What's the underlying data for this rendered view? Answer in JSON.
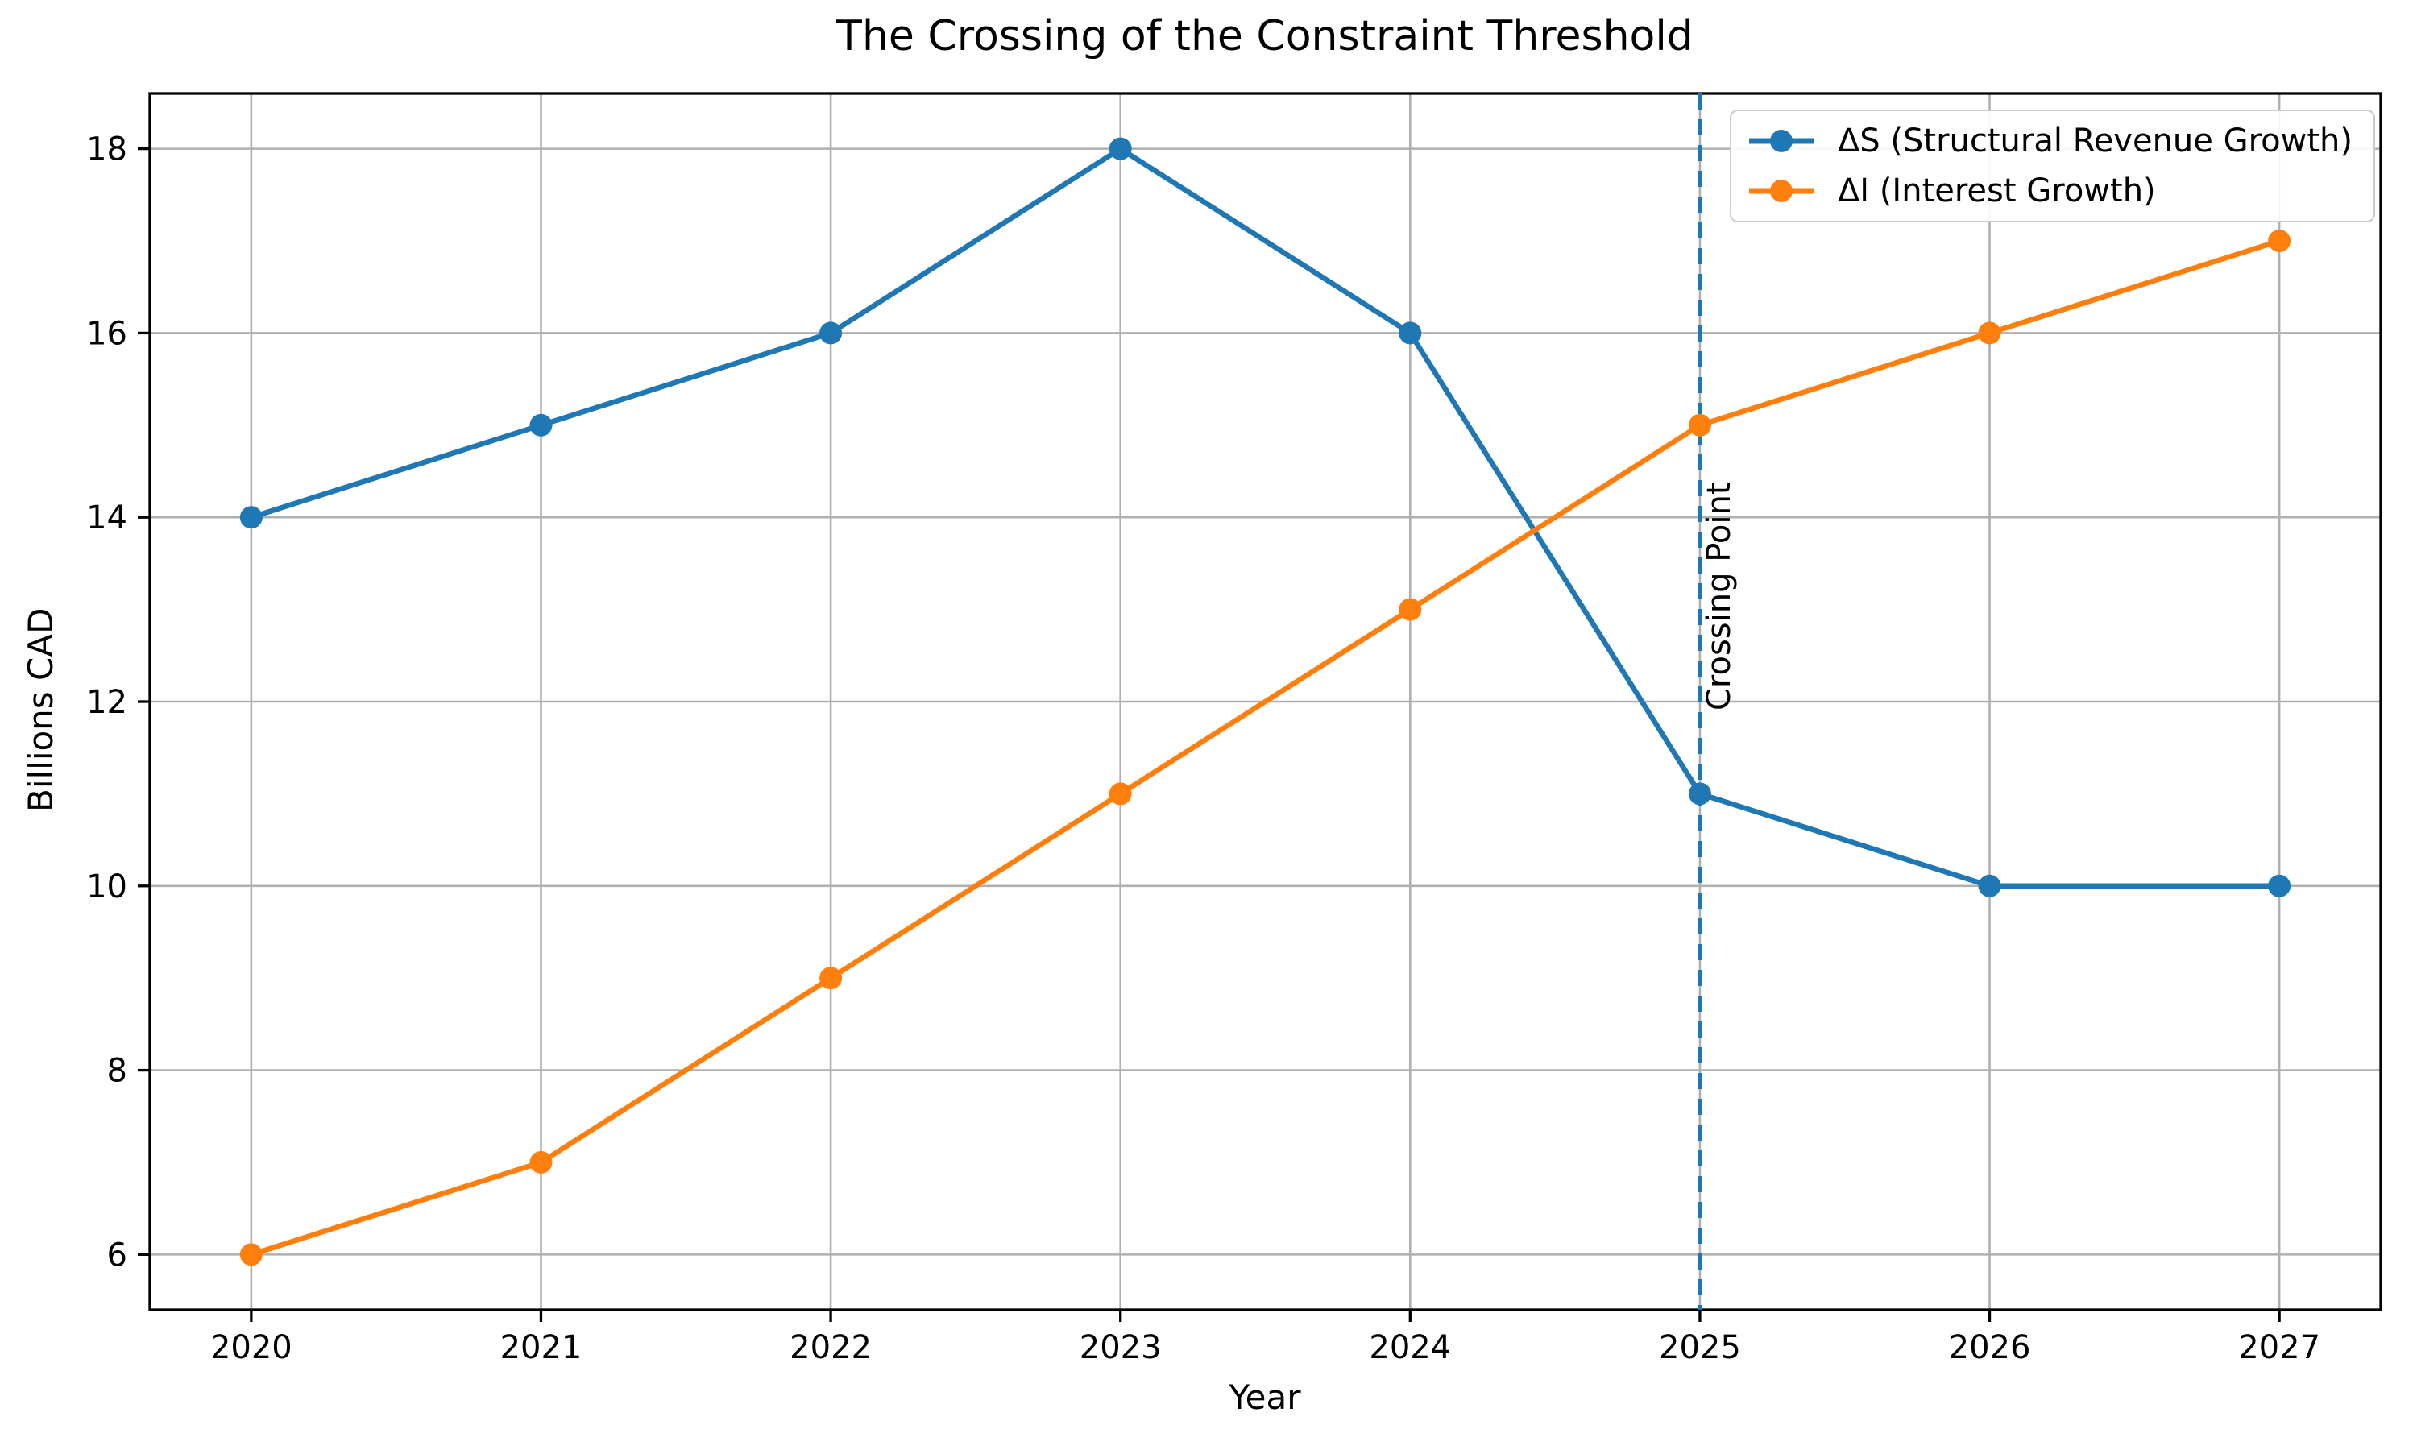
{
  "title": "The Crossing of the Constraint Threshold",
  "axes": {
    "xlabel": "Year",
    "ylabel": "Billions CAD"
  },
  "annotation_label": "Crossing Point",
  "legend": {
    "position": "upper right",
    "items": [
      {
        "label": "ΔS (Structural Revenue Growth)",
        "color": "#1f77b4"
      },
      {
        "label": "ΔI (Interest Growth)",
        "color": "#ff7f0e"
      }
    ]
  },
  "chart_data": {
    "type": "line",
    "title": "The Crossing of the Constraint Threshold",
    "xlabel": "Year",
    "ylabel": "Billions CAD",
    "x": [
      2020,
      2021,
      2022,
      2023,
      2024,
      2025,
      2026,
      2027
    ],
    "series": [
      {
        "name": "ΔS (Structural Revenue Growth)",
        "color": "#1f77b4",
        "marker": "o",
        "values": [
          14,
          15,
          16,
          18,
          16,
          11,
          10,
          10
        ]
      },
      {
        "name": "ΔI (Interest Growth)",
        "color": "#ff7f0e",
        "marker": "o",
        "values": [
          6,
          7,
          9,
          11,
          13,
          15,
          16,
          17
        ]
      }
    ],
    "yticks": [
      6,
      8,
      10,
      12,
      14,
      16,
      18
    ],
    "xlim": [
      2019.65,
      2027.35
    ],
    "ylim": [
      5.4,
      18.6
    ],
    "grid": true,
    "grid_color": "#b0b0b0",
    "legend_position": "upper right",
    "annotation": {
      "text": "Crossing Point",
      "x": 2025,
      "line_style": "dashed",
      "line_color": "#1f77b4",
      "text_color": "#000000"
    }
  }
}
